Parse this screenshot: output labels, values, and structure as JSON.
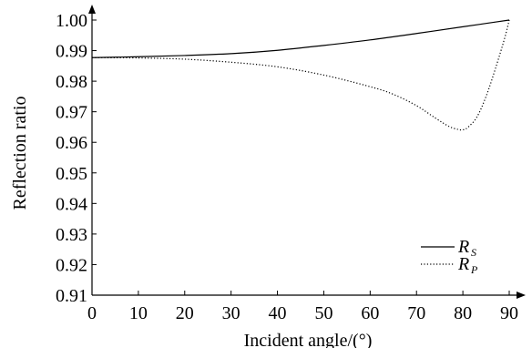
{
  "chart_data": {
    "type": "line",
    "xlabel": "Incident angle/(°)",
    "ylabel": "Reflection ratio",
    "xlim": [
      0,
      90
    ],
    "ylim": [
      0.91,
      1.0
    ],
    "xticks": [
      "0",
      "10",
      "20",
      "30",
      "40",
      "50",
      "60",
      "70",
      "80",
      "90"
    ],
    "yticks": [
      "0.91",
      "0.92",
      "0.93",
      "0.94",
      "0.95",
      "0.96",
      "0.97",
      "0.98",
      "0.99",
      "1.00"
    ],
    "grid": false,
    "legend_position": "bottom-right",
    "series": [
      {
        "name": "R_S",
        "legend_main": "R",
        "legend_sub": "S",
        "style": "solid",
        "color": "#000000",
        "x": [
          0,
          10,
          20,
          30,
          40,
          50,
          60,
          70,
          80,
          85,
          90
        ],
        "y": [
          0.9877,
          0.988,
          0.9884,
          0.989,
          0.9901,
          0.9917,
          0.9935,
          0.9956,
          0.9978,
          0.9989,
          1.0
        ]
      },
      {
        "name": "R_P",
        "legend_main": "R",
        "legend_sub": "P",
        "style": "dotted",
        "color": "#000000",
        "x": [
          0,
          10,
          20,
          30,
          40,
          50,
          60,
          65,
          70,
          74,
          77,
          79,
          80,
          81,
          83,
          85,
          87,
          89,
          90
        ],
        "y": [
          0.9877,
          0.9876,
          0.9872,
          0.9862,
          0.9847,
          0.982,
          0.9782,
          0.9757,
          0.972,
          0.968,
          0.9652,
          0.9642,
          0.9641,
          0.9648,
          0.9682,
          0.975,
          0.984,
          0.994,
          1.0
        ]
      }
    ]
  }
}
